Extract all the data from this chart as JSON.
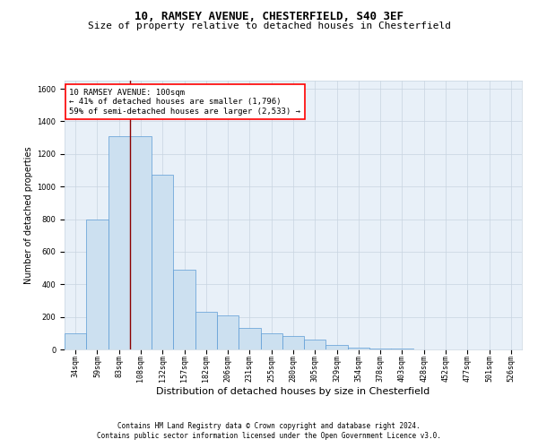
{
  "title1": "10, RAMSEY AVENUE, CHESTERFIELD, S40 3EF",
  "title2": "Size of property relative to detached houses in Chesterfield",
  "xlabel": "Distribution of detached houses by size in Chesterfield",
  "ylabel": "Number of detached properties",
  "annotation_text": "10 RAMSEY AVENUE: 100sqm\n← 41% of detached houses are smaller (1,796)\n59% of semi-detached houses are larger (2,533) →",
  "bar_color": "#cce0f0",
  "bar_edge_color": "#5b9bd5",
  "vline_color": "#8b0000",
  "annotation_box_color": "white",
  "annotation_box_edge": "red",
  "categories": [
    "34sqm",
    "59sqm",
    "83sqm",
    "108sqm",
    "132sqm",
    "157sqm",
    "182sqm",
    "206sqm",
    "231sqm",
    "255sqm",
    "280sqm",
    "305sqm",
    "329sqm",
    "354sqm",
    "378sqm",
    "403sqm",
    "428sqm",
    "452sqm",
    "477sqm",
    "501sqm",
    "526sqm"
  ],
  "bar_heights": [
    100,
    800,
    1310,
    1310,
    1070,
    490,
    230,
    210,
    130,
    100,
    80,
    60,
    25,
    10,
    5,
    5,
    2,
    2,
    1,
    1,
    1
  ],
  "vline_x": 2.5,
  "ylim": [
    0,
    1650
  ],
  "yticks": [
    0,
    200,
    400,
    600,
    800,
    1000,
    1200,
    1400,
    1600
  ],
  "grid_color": "#c8d4e0",
  "bg_color": "#e8f0f8",
  "footnote1": "Contains HM Land Registry data © Crown copyright and database right 2024.",
  "footnote2": "Contains public sector information licensed under the Open Government Licence v3.0.",
  "title1_fontsize": 9,
  "title2_fontsize": 8,
  "xlabel_fontsize": 8,
  "ylabel_fontsize": 7,
  "tick_fontsize": 6,
  "annotation_fontsize": 6.5,
  "footnote_fontsize": 5.5
}
